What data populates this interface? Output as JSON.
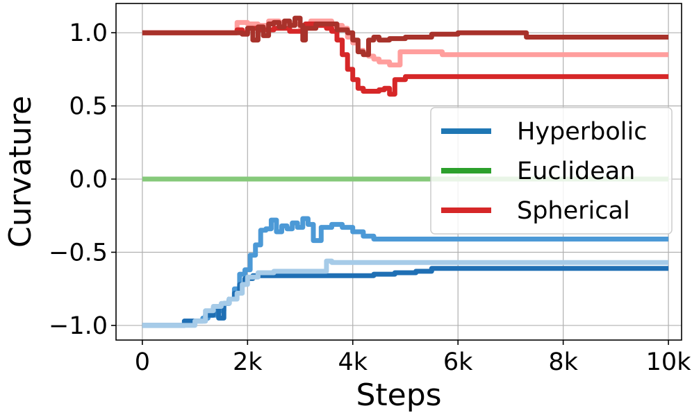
{
  "chart_data": {
    "type": "line",
    "xlabel": "Steps",
    "ylabel": "Curvature",
    "xlim": [
      -500,
      10250
    ],
    "ylim": [
      -1.1,
      1.2
    ],
    "xticks": [
      {
        "value": 0,
        "label": "0"
      },
      {
        "value": 2000,
        "label": "2k"
      },
      {
        "value": 4000,
        "label": "4k"
      },
      {
        "value": 6000,
        "label": "6k"
      },
      {
        "value": 8000,
        "label": "8k"
      },
      {
        "value": 10000,
        "label": "10k"
      }
    ],
    "yticks": [
      {
        "value": 1.0,
        "label": "1.0"
      },
      {
        "value": 0.5,
        "label": "0.5"
      },
      {
        "value": 0.0,
        "label": "0.0"
      },
      {
        "value": -0.5,
        "label": "−0.5"
      },
      {
        "value": -1.0,
        "label": "−1.0"
      }
    ],
    "grid": true,
    "legend_position": "center-right",
    "legend": [
      {
        "label": "Hyperbolic",
        "color": "#1f77b4"
      },
      {
        "label": "Euclidean",
        "color": "#2ca02c"
      },
      {
        "label": "Spherical",
        "color": "#d62728"
      }
    ],
    "series": [
      {
        "group": "Euclidean",
        "color": "#86c97a",
        "x": [
          0,
          10000
        ],
        "y": [
          0.0,
          0.0
        ]
      },
      {
        "group": "Hyperbolic",
        "color": "#4c99d6",
        "x": [
          0,
          600,
          800,
          1000,
          1150,
          1250,
          1400,
          1550,
          1650,
          1750,
          1850,
          1950,
          2050,
          2150,
          2250,
          2350,
          2450,
          2550,
          2650,
          2750,
          2850,
          2950,
          3050,
          3150,
          3250,
          3400,
          3600,
          3800,
          4000,
          4200,
          4400,
          5000,
          6000,
          8000,
          10000
        ],
        "y": [
          -1.0,
          -1.0,
          -0.97,
          -0.97,
          -0.95,
          -0.93,
          -0.9,
          -0.85,
          -0.82,
          -0.75,
          -0.65,
          -0.62,
          -0.52,
          -0.45,
          -0.35,
          -0.34,
          -0.28,
          -0.36,
          -0.32,
          -0.34,
          -0.3,
          -0.33,
          -0.27,
          -0.31,
          -0.42,
          -0.33,
          -0.31,
          -0.33,
          -0.36,
          -0.39,
          -0.41,
          -0.41,
          -0.41,
          -0.41,
          -0.41
        ]
      },
      {
        "group": "Hyperbolic",
        "color": "#1f6fb4",
        "x": [
          0,
          600,
          800,
          1000,
          1200,
          1350,
          1450,
          1550,
          1650,
          1750,
          1850,
          1950,
          2100,
          2300,
          2600,
          3000,
          3500,
          4000,
          4400,
          4800,
          5200,
          5500,
          6000,
          8000,
          10000
        ],
        "y": [
          -1.0,
          -1.0,
          -0.97,
          -0.97,
          -0.93,
          -0.88,
          -0.95,
          -0.85,
          -0.82,
          -0.78,
          -0.72,
          -0.68,
          -0.66,
          -0.66,
          -0.66,
          -0.66,
          -0.66,
          -0.66,
          -0.65,
          -0.64,
          -0.63,
          -0.61,
          -0.61,
          -0.61,
          -0.61
        ]
      },
      {
        "group": "Hyperbolic",
        "color": "#a6cbe8",
        "x": [
          0,
          800,
          1000,
          1200,
          1350,
          1500,
          1650,
          1800,
          1900,
          2000,
          2200,
          2500,
          3000,
          3400,
          3500,
          3600,
          3800,
          4200,
          6000,
          8000,
          10000
        ],
        "y": [
          -1.0,
          -1.0,
          -0.97,
          -0.9,
          -0.87,
          -0.85,
          -0.82,
          -0.78,
          -0.72,
          -0.67,
          -0.64,
          -0.63,
          -0.63,
          -0.63,
          -0.56,
          -0.57,
          -0.57,
          -0.57,
          -0.57,
          -0.57,
          -0.57
        ]
      },
      {
        "group": "Spherical",
        "color": "#ff9e9d",
        "x": [
          0,
          1700,
          1800,
          1900,
          2000,
          2200,
          2400,
          2600,
          2800,
          3000,
          3200,
          3400,
          3600,
          3800,
          3900,
          4000,
          4100,
          4200,
          4300,
          4400,
          4500,
          4700,
          4900,
          5200,
          5500,
          5700,
          6000,
          8000,
          10000
        ],
        "y": [
          1.0,
          1.0,
          1.07,
          1.07,
          1.06,
          1.05,
          1.08,
          1.07,
          1.06,
          1.04,
          1.08,
          1.08,
          1.05,
          1.03,
          0.97,
          0.93,
          0.88,
          0.86,
          0.84,
          0.82,
          0.8,
          0.78,
          0.87,
          0.87,
          0.87,
          0.85,
          0.85,
          0.85,
          0.85
        ]
      },
      {
        "group": "Spherical",
        "color": "#d62728",
        "x": [
          0,
          1700,
          1800,
          1900,
          2000,
          2200,
          2500,
          2800,
          3100,
          3300,
          3500,
          3600,
          3700,
          3800,
          3900,
          4000,
          4100,
          4200,
          4300,
          4400,
          4500,
          4600,
          4700,
          4800,
          5000,
          6000,
          8000,
          10000
        ],
        "y": [
          1.0,
          1.0,
          1.02,
          1.0,
          1.03,
          1.02,
          1.03,
          1.01,
          1.06,
          1.05,
          1.03,
          1.01,
          0.95,
          0.85,
          0.75,
          0.68,
          0.62,
          0.6,
          0.6,
          0.6,
          0.61,
          0.62,
          0.58,
          0.68,
          0.7,
          0.7,
          0.7,
          0.7
        ]
      },
      {
        "group": "Spherical",
        "color": "#a8322b",
        "x": [
          0,
          1700,
          1900,
          2000,
          2100,
          2200,
          2300,
          2400,
          2500,
          2600,
          2700,
          2800,
          2900,
          3000,
          3050,
          3100,
          3300,
          3500,
          3700,
          3900,
          4000,
          4100,
          4200,
          4300,
          4400,
          4500,
          4700,
          5000,
          5500,
          6000,
          7200,
          7300,
          8000,
          10000
        ],
        "y": [
          1.0,
          1.0,
          0.99,
          1.03,
          0.95,
          1.04,
          0.98,
          1.06,
          1.07,
          1.04,
          1.08,
          1.05,
          1.1,
          1.05,
          0.95,
          1.03,
          1.06,
          1.06,
          1.02,
          1.0,
          0.95,
          0.87,
          0.85,
          0.95,
          0.97,
          0.95,
          0.96,
          0.97,
          0.99,
          1.0,
          1.0,
          0.97,
          0.97,
          0.97
        ]
      }
    ]
  }
}
